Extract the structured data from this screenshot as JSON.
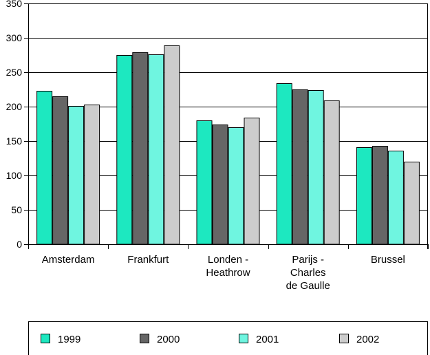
{
  "chart_data": {
    "type": "bar",
    "title": "",
    "xlabel": "",
    "ylabel": "",
    "ylim": [
      0,
      350
    ],
    "yticks": [
      0,
      50,
      100,
      150,
      200,
      250,
      300,
      350
    ],
    "grid": true,
    "legend_position": "bottom",
    "categories": [
      [
        "Amsterdam"
      ],
      [
        "Frankfurt"
      ],
      [
        "Londen -",
        "Heathrow"
      ],
      [
        "Parijs -",
        "Charles",
        "de Gaulle"
      ],
      [
        "Brussel"
      ]
    ],
    "series": [
      {
        "name": "1999",
        "color": "#1de8c0",
        "values": [
          223,
          275,
          180,
          234,
          141
        ]
      },
      {
        "name": "2000",
        "color": "#666666",
        "values": [
          215,
          279,
          174,
          225,
          143
        ]
      },
      {
        "name": "2001",
        "color": "#6ff5e0",
        "values": [
          201,
          276,
          170,
          224,
          136
        ]
      },
      {
        "name": "2002",
        "color": "#cccccc",
        "values": [
          203,
          289,
          184,
          209,
          120
        ]
      }
    ]
  }
}
